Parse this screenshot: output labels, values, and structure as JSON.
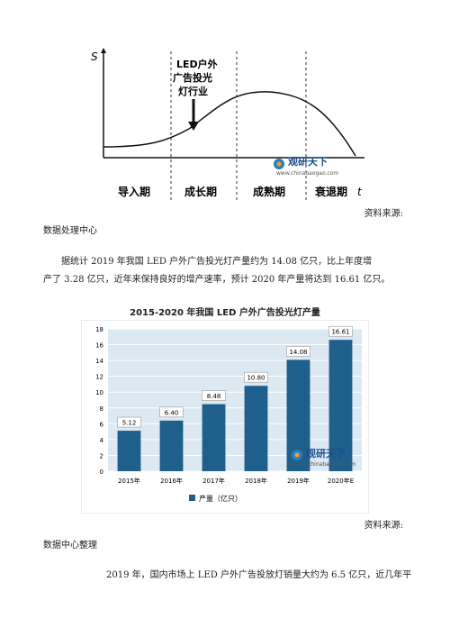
{
  "lifecycle": {
    "s_axis": "S",
    "t_axis": "t",
    "annotation_lines": [
      "LED户外",
      "广告投光",
      "灯行业"
    ],
    "phases": [
      "导入期",
      "成长期",
      "成熟期",
      "衰退期"
    ],
    "watermark_name": "观研天下",
    "watermark_url": "www.chinabaogao.com"
  },
  "source1_label": "资料来源:",
  "source1_text": "数据处理中心",
  "paragraph1_line1": "据统计 2019 年我国 LED 户外广告投光灯产量约为 14.08 亿只，比上年度增",
  "paragraph1_line2": "产了 3.28 亿只，近年来保持良好的增产速率，预计 2020 年产量将达到 16.61 亿只。",
  "chart_title": "2015-2020 年我国 LED 户外广告投光灯产量",
  "chart_data": {
    "type": "bar",
    "title": "2015-2020 年我国 LED 户外广告投光灯产量",
    "categories": [
      "2015年",
      "2016年",
      "2017年",
      "2018年",
      "2019年",
      "2020年E"
    ],
    "series": [
      {
        "name": "产量（亿只）",
        "values": [
          5.12,
          6.4,
          8.48,
          10.8,
          14.08,
          16.61
        ]
      }
    ],
    "value_labels": [
      "5.12",
      "6.40",
      "8.48",
      "10.80",
      "14.08",
      "16.61"
    ],
    "yticks": [
      "0",
      "2",
      "4",
      "6",
      "8",
      "10",
      "12",
      "14",
      "16",
      "18"
    ],
    "ylim": [
      0,
      18
    ],
    "grid": true,
    "legend": "bottom",
    "bar_color": "#1f5f8b",
    "bg_color": "#dce8f2"
  },
  "source2_label": "资料来源:",
  "source2_text": "数据中心整理",
  "paragraph2": "2019 年，国内市场上 LED 户外广告投放灯销量大约为 6.5 亿只，近几年平"
}
